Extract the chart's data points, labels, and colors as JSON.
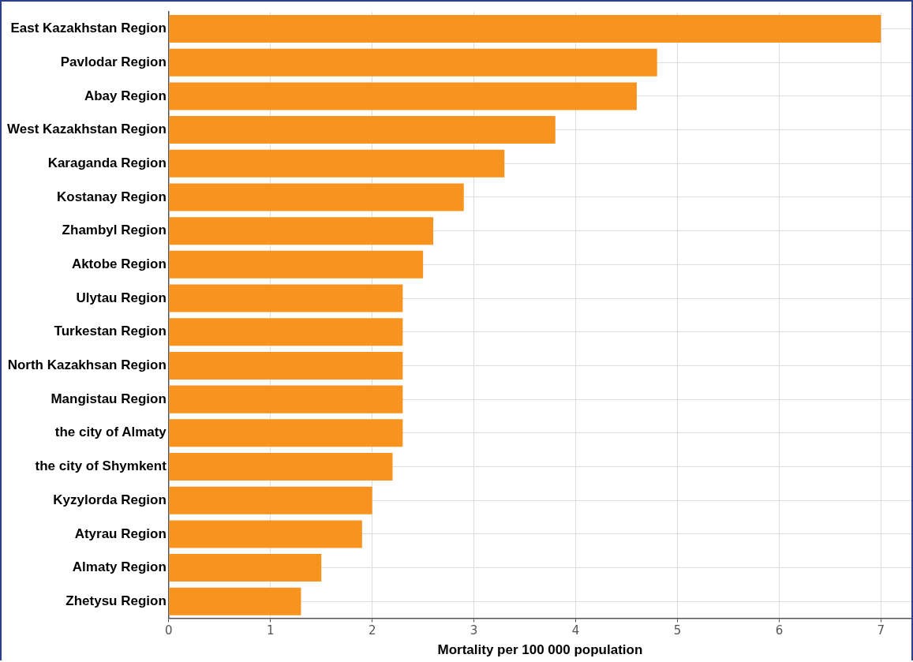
{
  "chart_data": {
    "type": "bar",
    "orientation": "horizontal",
    "xlabel": "Mortality per 100 000 population",
    "categories": [
      "East Kazakhstan Region",
      "Pavlodar Region",
      "Abay Region",
      "West Kazakhstan Region",
      "Karaganda Region",
      "Kostanay Region",
      "Zhambyl Region",
      "Aktobe Region",
      "Ulytau Region",
      "Turkestan Region",
      "North Kazakhsan Region",
      "Mangistau Region",
      "the city of Almaty",
      "the city of Shymkent",
      "Kyzylorda Region",
      "Atyrau Region",
      "Almaty Region",
      "Zhetysu Region"
    ],
    "values": [
      7.0,
      4.8,
      4.6,
      3.8,
      3.3,
      2.9,
      2.6,
      2.5,
      2.3,
      2.3,
      2.3,
      2.3,
      2.3,
      2.2,
      2.0,
      1.9,
      1.5,
      1.3
    ],
    "color": "#f7931e",
    "xlim": [
      0,
      7.3
    ],
    "xticks": [
      0,
      1,
      2,
      3,
      4,
      5,
      6,
      7
    ],
    "grid": true,
    "legend": false
  }
}
